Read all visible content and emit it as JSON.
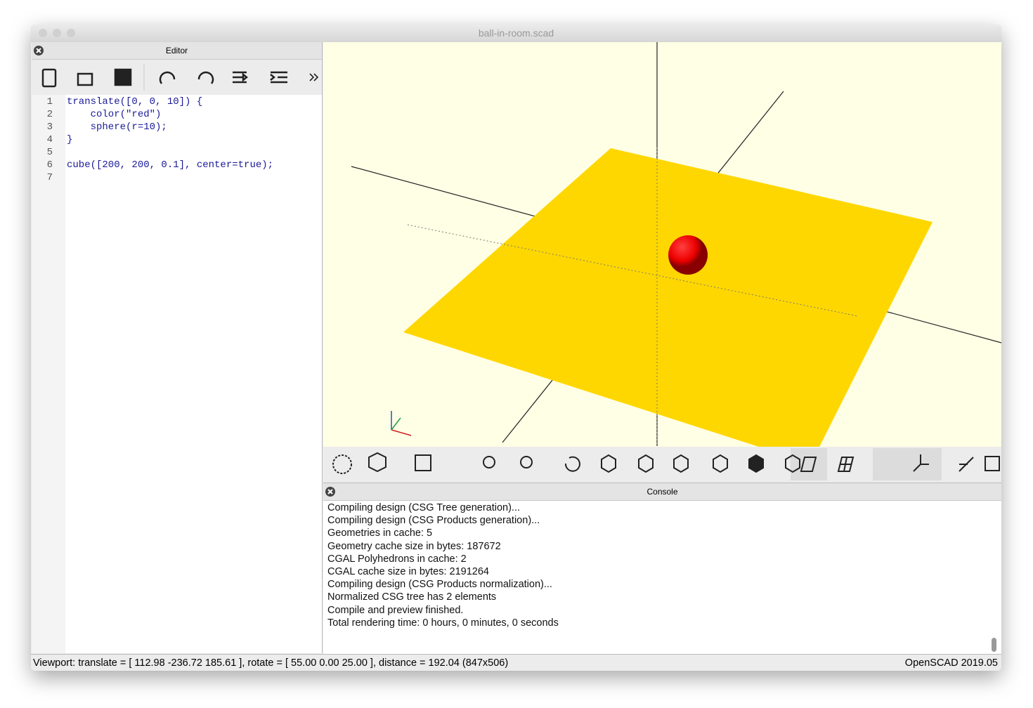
{
  "window": {
    "title": "ball-in-room.scad"
  },
  "editor": {
    "title": "Editor",
    "line_numbers": [
      1,
      2,
      3,
      4,
      5,
      6,
      7
    ],
    "lines": [
      "translate([0, 0, 10]) {",
      "    color(\"red\")",
      "    sphere(r=10);",
      "}",
      "",
      "cube([200, 200, 0.1], center=true);",
      ""
    ]
  },
  "console": {
    "title": "Console",
    "lines": [
      "Compiling design (CSG Tree generation)...",
      "Compiling design (CSG Products generation)...",
      "Geometries in cache: 5",
      "Geometry cache size in bytes: 187672",
      "CGAL Polyhedrons in cache: 2",
      "CGAL cache size in bytes: 2191264",
      "Compiling design (CSG Products normalization)...",
      "Normalized CSG tree has 2 elements",
      "Compile and preview finished.",
      "Total rendering time: 0 hours, 0 minutes, 0 seconds"
    ]
  },
  "status": {
    "viewport": "Viewport: translate = [ 112.98 -236.72 185.61 ], rotate = [ 55.00 0.00 25.00 ], distance = 192.04 (847x506)",
    "version": "OpenSCAD 2019.05"
  }
}
